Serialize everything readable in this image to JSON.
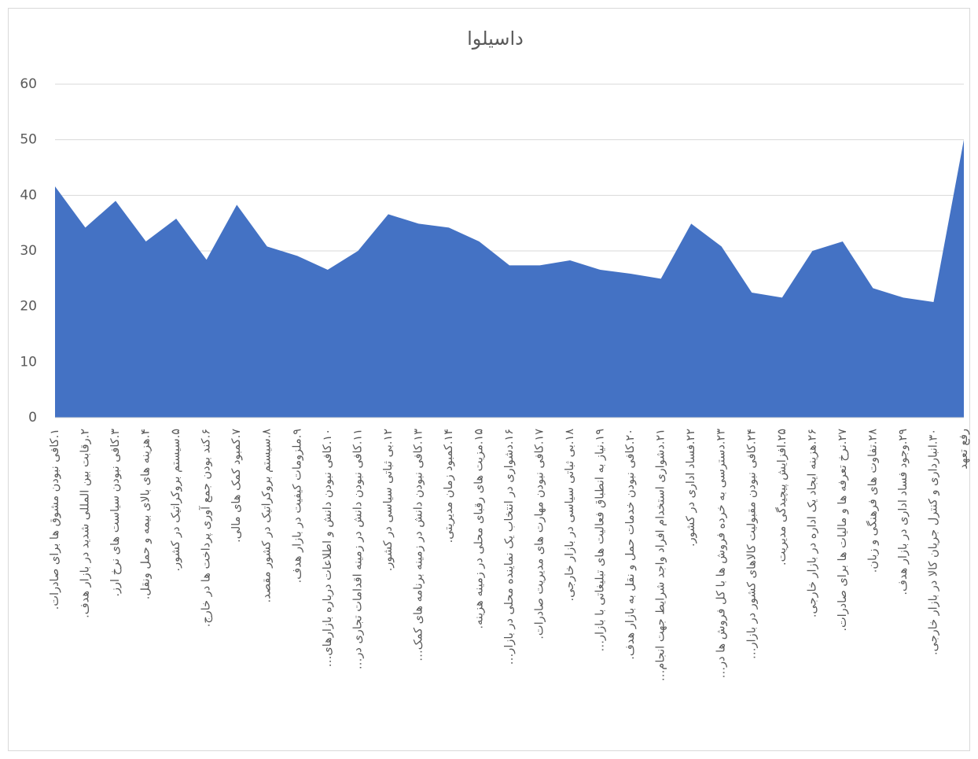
{
  "chart_data": {
    "type": "area",
    "title": "داسیلوا",
    "categories": [
      "۱.کافی نبودن مشوق ها برای صادرات.",
      "۲.رقابت بین المللی شدید در بازار هدف.",
      "۳.کافی نبودن سیاست های نرخ ارز.",
      "۴.هزینه های بالای بیمه و حمل ونقل.",
      "۵.سیستم بروکراتیک در کشور.",
      "۶.کند بودن جمع آوری پرداخت ها در خارج.",
      "۷.کمبود کمک های مالی.",
      "۸.سیستم بروکراتیک در کشور مقصد.",
      "۹.ملزومات کیفیت در بازار هدف.",
      "۱۰.کافی نبودن دانش و اطلاعات درباره بازارهای…",
      "۱۱.کافی نبودن دانش در زمینه اقدامات تجاری در…",
      "۱۲.بی ثباتی سیاسی در کشور.",
      "۱۳.کافی نبودن دانش در زمینه برنامه های کمک…",
      "۱۴.کمبود زمان مدیریتی.",
      "۱۵.مزیت های رقبای محلی در زمینه هزینه.",
      "۱۶.دشواری در انتخاب یک نماینده محلی در بازار…",
      "۱۷.کافی نبودن مهارت های مدیریت صادرات.",
      "۱۸.بی ثباتی سیاسی در بازار خارجی.",
      "۱۹.نیاز به انطباق فعالیت های تبلیغاتی با بازار…",
      "۲۰.کافی نبودن خدمات حمل و نقل به بازار هدف.",
      "۲۱.دشواری استخدام افراد واجد شرایط جهت انجام…",
      "۲۲.فساد اداری در کشور.",
      "۲۳.دسترسی به خرده فروش ها با کل فروش ها در…",
      "۲۴.کافی نبودن مقبولیت کالاهای کشور در بازار…",
      "۲۵.افزایش پیچیدگی مدیریت.",
      "۲۶.هزینه ایجاد یک اداره در بازار خارجی.",
      "۲۷.نرخ تعرفه ها و مالیات ها برای صادرات.",
      "۲۸.تفاوت های فرهنگی و زبان.",
      "۲۹.وجود فساد اداری در بازار هدف.",
      "۳۰.انبارداری و کنترل جریان کالا در بازار خارجی.",
      "رفع تعهد"
    ],
    "values": [
      41.6,
      34.2,
      39.0,
      31.7,
      35.8,
      28.4,
      38.3,
      30.8,
      29.1,
      26.6,
      30.0,
      36.6,
      34.9,
      34.2,
      31.7,
      27.4,
      27.4,
      28.3,
      26.6,
      25.9,
      25.0,
      34.9,
      30.8,
      22.5,
      21.6,
      30.0,
      31.7,
      23.3,
      21.6,
      20.8,
      50
    ],
    "color": "#4472c4",
    "ylim": [
      0,
      60
    ],
    "yticks": [
      0,
      10,
      20,
      30,
      40,
      50,
      60
    ],
    "grid": true
  }
}
